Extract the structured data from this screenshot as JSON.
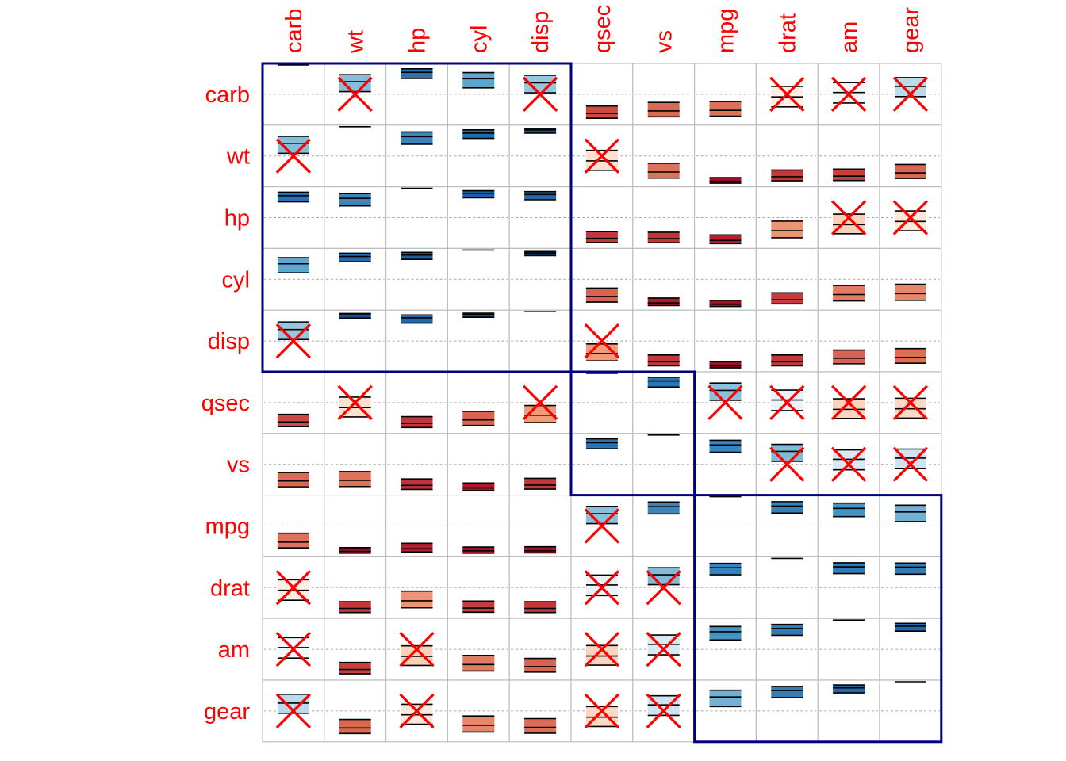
{
  "chart_data": {
    "type": "heatmap",
    "variant": "correlation-matrix-confidence-interval",
    "title": "",
    "variables": [
      "carb",
      "wt",
      "hp",
      "cyl",
      "disp",
      "qsec",
      "vs",
      "mpg",
      "drat",
      "am",
      "gear"
    ],
    "col_labels": [
      "carb",
      "wt",
      "hp",
      "cyl",
      "disp",
      "qsec",
      "vs",
      "mpg",
      "drat",
      "am",
      "gear"
    ],
    "row_labels": [
      "carb",
      "wt",
      "hp",
      "cyl",
      "disp",
      "qsec",
      "vs",
      "mpg",
      "drat",
      "am",
      "gear"
    ],
    "order": "hierarchical clustering",
    "clusters": [
      [
        "carb",
        "wt",
        "hp",
        "cyl",
        "disp"
      ],
      [
        "qsec",
        "vs"
      ],
      [
        "mpg",
        "drat",
        "am",
        "gear"
      ]
    ],
    "correlation_range": [
      -1,
      1
    ],
    "insignificant_marker": "cross",
    "gridlines": true,
    "legend": "none",
    "colors": {
      "label_text": "#ff0000",
      "cluster_rectangle": "#000080",
      "cross": "#ff0000",
      "grid": "#bebebe",
      "zero_line": "#a6a6a6",
      "palette_negative_to_positive": [
        "#67001f",
        "#b2182b",
        "#d6604d",
        "#f4a582",
        "#fddbc7",
        "#ffffff",
        "#d1e5f0",
        "#92c5de",
        "#4393c3",
        "#2166ac",
        "#053061"
      ]
    },
    "cells": [
      {
        "row": "carb",
        "col": "wt",
        "r": 0.43,
        "lower": 0.09,
        "upper": 0.67,
        "significant": false
      },
      {
        "row": "carb",
        "col": "hp",
        "r": 0.75,
        "lower": 0.54,
        "upper": 0.87,
        "significant": true
      },
      {
        "row": "carb",
        "col": "cyl",
        "r": 0.53,
        "lower": 0.22,
        "upper": 0.74,
        "significant": true
      },
      {
        "row": "carb",
        "col": "disp",
        "r": 0.39,
        "lower": 0.05,
        "upper": 0.65,
        "significant": false
      },
      {
        "row": "carb",
        "col": "qsec",
        "r": -0.66,
        "lower": -0.82,
        "upper": -0.4,
        "significant": true
      },
      {
        "row": "carb",
        "col": "vs",
        "r": -0.57,
        "lower": -0.77,
        "upper": -0.28,
        "significant": true
      },
      {
        "row": "carb",
        "col": "mpg",
        "r": -0.55,
        "lower": -0.75,
        "upper": -0.25,
        "significant": true
      },
      {
        "row": "carb",
        "col": "drat",
        "r": -0.09,
        "lower": -0.43,
        "upper": 0.27,
        "significant": false
      },
      {
        "row": "carb",
        "col": "am",
        "r": 0.06,
        "lower": -0.3,
        "upper": 0.4,
        "significant": false
      },
      {
        "row": "carb",
        "col": "gear",
        "r": 0.27,
        "lower": -0.08,
        "upper": 0.57,
        "significant": false
      },
      {
        "row": "wt",
        "col": "carb",
        "r": 0.43,
        "lower": 0.09,
        "upper": 0.67,
        "significant": false
      },
      {
        "row": "wt",
        "col": "hp",
        "r": 0.66,
        "lower": 0.4,
        "upper": 0.82,
        "significant": true
      },
      {
        "row": "wt",
        "col": "cyl",
        "r": 0.78,
        "lower": 0.6,
        "upper": 0.89,
        "significant": true
      },
      {
        "row": "wt",
        "col": "disp",
        "r": 0.89,
        "lower": 0.78,
        "upper": 0.94,
        "significant": true
      },
      {
        "row": "wt",
        "col": "qsec",
        "r": -0.17,
        "lower": -0.49,
        "upper": 0.19,
        "significant": false
      },
      {
        "row": "wt",
        "col": "vs",
        "r": -0.55,
        "lower": -0.76,
        "upper": -0.25,
        "significant": true
      },
      {
        "row": "wt",
        "col": "mpg",
        "r": -0.87,
        "lower": -0.93,
        "upper": -0.74,
        "significant": true
      },
      {
        "row": "wt",
        "col": "drat",
        "r": -0.71,
        "lower": -0.85,
        "upper": -0.48,
        "significant": true
      },
      {
        "row": "wt",
        "col": "am",
        "r": -0.69,
        "lower": -0.84,
        "upper": -0.45,
        "significant": true
      },
      {
        "row": "wt",
        "col": "gear",
        "r": -0.58,
        "lower": -0.77,
        "upper": -0.29,
        "significant": true
      },
      {
        "row": "hp",
        "col": "carb",
        "r": 0.75,
        "lower": 0.54,
        "upper": 0.87,
        "significant": true
      },
      {
        "row": "hp",
        "col": "wt",
        "r": 0.66,
        "lower": 0.4,
        "upper": 0.82,
        "significant": true
      },
      {
        "row": "hp",
        "col": "cyl",
        "r": 0.83,
        "lower": 0.68,
        "upper": 0.92,
        "significant": true
      },
      {
        "row": "hp",
        "col": "disp",
        "r": 0.79,
        "lower": 0.61,
        "upper": 0.89,
        "significant": true
      },
      {
        "row": "hp",
        "col": "qsec",
        "r": -0.71,
        "lower": -0.85,
        "upper": -0.48,
        "significant": true
      },
      {
        "row": "hp",
        "col": "vs",
        "r": -0.72,
        "lower": -0.86,
        "upper": -0.5,
        "significant": true
      },
      {
        "row": "hp",
        "col": "mpg",
        "r": -0.78,
        "lower": -0.89,
        "upper": -0.59,
        "significant": true
      },
      {
        "row": "hp",
        "col": "drat",
        "r": -0.45,
        "lower": -0.69,
        "upper": -0.12,
        "significant": true
      },
      {
        "row": "hp",
        "col": "am",
        "r": -0.24,
        "lower": -0.55,
        "upper": 0.12,
        "significant": false
      },
      {
        "row": "hp",
        "col": "gear",
        "r": -0.13,
        "lower": -0.45,
        "upper": 0.23,
        "significant": false
      },
      {
        "row": "cyl",
        "col": "carb",
        "r": 0.53,
        "lower": 0.22,
        "upper": 0.74,
        "significant": true
      },
      {
        "row": "cyl",
        "col": "wt",
        "r": 0.78,
        "lower": 0.6,
        "upper": 0.89,
        "significant": true
      },
      {
        "row": "cyl",
        "col": "hp",
        "r": 0.83,
        "lower": 0.68,
        "upper": 0.92,
        "significant": true
      },
      {
        "row": "cyl",
        "col": "disp",
        "r": 0.9,
        "lower": 0.81,
        "upper": 0.95,
        "significant": true
      },
      {
        "row": "cyl",
        "col": "qsec",
        "r": -0.59,
        "lower": -0.78,
        "upper": -0.3,
        "significant": true
      },
      {
        "row": "cyl",
        "col": "vs",
        "r": -0.81,
        "lower": -0.9,
        "upper": -0.64,
        "significant": true
      },
      {
        "row": "cyl",
        "col": "mpg",
        "r": -0.85,
        "lower": -0.93,
        "upper": -0.72,
        "significant": true
      },
      {
        "row": "cyl",
        "col": "drat",
        "r": -0.7,
        "lower": -0.84,
        "upper": -0.46,
        "significant": true
      },
      {
        "row": "cyl",
        "col": "am",
        "r": -0.52,
        "lower": -0.74,
        "upper": -0.21,
        "significant": true
      },
      {
        "row": "cyl",
        "col": "gear",
        "r": -0.49,
        "lower": -0.72,
        "upper": -0.17,
        "significant": true
      },
      {
        "row": "disp",
        "col": "carb",
        "r": 0.39,
        "lower": 0.05,
        "upper": 0.65,
        "significant": false
      },
      {
        "row": "disp",
        "col": "wt",
        "r": 0.89,
        "lower": 0.78,
        "upper": 0.94,
        "significant": true
      },
      {
        "row": "disp",
        "col": "hp",
        "r": 0.79,
        "lower": 0.61,
        "upper": 0.89,
        "significant": true
      },
      {
        "row": "disp",
        "col": "cyl",
        "r": 0.9,
        "lower": 0.81,
        "upper": 0.95,
        "significant": true
      },
      {
        "row": "disp",
        "col": "qsec",
        "r": -0.43,
        "lower": -0.68,
        "upper": -0.1,
        "significant": false
      },
      {
        "row": "disp",
        "col": "vs",
        "r": -0.71,
        "lower": -0.85,
        "upper": -0.48,
        "significant": true
      },
      {
        "row": "disp",
        "col": "mpg",
        "r": -0.85,
        "lower": -0.92,
        "upper": -0.71,
        "significant": true
      },
      {
        "row": "disp",
        "col": "drat",
        "r": -0.71,
        "lower": -0.85,
        "upper": -0.48,
        "significant": true
      },
      {
        "row": "disp",
        "col": "am",
        "r": -0.59,
        "lower": -0.78,
        "upper": -0.31,
        "significant": true
      },
      {
        "row": "disp",
        "col": "gear",
        "r": -0.56,
        "lower": -0.76,
        "upper": -0.26,
        "significant": true
      },
      {
        "row": "qsec",
        "col": "carb",
        "r": -0.66,
        "lower": -0.82,
        "upper": -0.4,
        "significant": true
      },
      {
        "row": "qsec",
        "col": "wt",
        "r": -0.17,
        "lower": -0.49,
        "upper": 0.19,
        "significant": false
      },
      {
        "row": "qsec",
        "col": "hp",
        "r": -0.71,
        "lower": -0.85,
        "upper": -0.48,
        "significant": true
      },
      {
        "row": "qsec",
        "col": "cyl",
        "r": -0.59,
        "lower": -0.78,
        "upper": -0.3,
        "significant": true
      },
      {
        "row": "qsec",
        "col": "disp",
        "r": -0.43,
        "lower": -0.68,
        "upper": -0.1,
        "significant": false
      },
      {
        "row": "qsec",
        "col": "vs",
        "r": 0.74,
        "lower": 0.53,
        "upper": 0.87,
        "significant": true
      },
      {
        "row": "qsec",
        "col": "mpg",
        "r": 0.42,
        "lower": 0.08,
        "upper": 0.67,
        "significant": false
      },
      {
        "row": "qsec",
        "col": "drat",
        "r": 0.09,
        "lower": -0.27,
        "upper": 0.43,
        "significant": false
      },
      {
        "row": "qsec",
        "col": "am",
        "r": -0.23,
        "lower": -0.54,
        "upper": 0.13,
        "significant": false
      },
      {
        "row": "qsec",
        "col": "gear",
        "r": -0.21,
        "lower": -0.53,
        "upper": 0.15,
        "significant": false
      },
      {
        "row": "vs",
        "col": "carb",
        "r": -0.57,
        "lower": -0.77,
        "upper": -0.28,
        "significant": true
      },
      {
        "row": "vs",
        "col": "wt",
        "r": -0.55,
        "lower": -0.76,
        "upper": -0.25,
        "significant": true
      },
      {
        "row": "vs",
        "col": "hp",
        "r": -0.72,
        "lower": -0.86,
        "upper": -0.5,
        "significant": true
      },
      {
        "row": "vs",
        "col": "cyl",
        "r": -0.81,
        "lower": -0.9,
        "upper": -0.64,
        "significant": true
      },
      {
        "row": "vs",
        "col": "disp",
        "r": -0.71,
        "lower": -0.85,
        "upper": -0.48,
        "significant": true
      },
      {
        "row": "vs",
        "col": "qsec",
        "r": 0.74,
        "lower": 0.53,
        "upper": 0.87,
        "significant": true
      },
      {
        "row": "vs",
        "col": "mpg",
        "r": 0.66,
        "lower": 0.41,
        "upper": 0.82,
        "significant": true
      },
      {
        "row": "vs",
        "col": "drat",
        "r": 0.44,
        "lower": 0.1,
        "upper": 0.68,
        "significant": false
      },
      {
        "row": "vs",
        "col": "am",
        "r": 0.17,
        "lower": -0.19,
        "upper": 0.49,
        "significant": false
      },
      {
        "row": "vs",
        "col": "gear",
        "r": 0.21,
        "lower": -0.15,
        "upper": 0.52,
        "significant": false
      },
      {
        "row": "mpg",
        "col": "carb",
        "r": -0.55,
        "lower": -0.75,
        "upper": -0.25,
        "significant": true
      },
      {
        "row": "mpg",
        "col": "wt",
        "r": -0.87,
        "lower": -0.93,
        "upper": -0.74,
        "significant": true
      },
      {
        "row": "mpg",
        "col": "hp",
        "r": -0.78,
        "lower": -0.89,
        "upper": -0.59,
        "significant": true
      },
      {
        "row": "mpg",
        "col": "cyl",
        "r": -0.85,
        "lower": -0.93,
        "upper": -0.72,
        "significant": true
      },
      {
        "row": "mpg",
        "col": "disp",
        "r": -0.85,
        "lower": -0.92,
        "upper": -0.71,
        "significant": true
      },
      {
        "row": "mpg",
        "col": "qsec",
        "r": 0.42,
        "lower": 0.08,
        "upper": 0.67,
        "significant": false
      },
      {
        "row": "mpg",
        "col": "vs",
        "r": 0.66,
        "lower": 0.41,
        "upper": 0.82,
        "significant": true
      },
      {
        "row": "mpg",
        "col": "drat",
        "r": 0.68,
        "lower": 0.44,
        "upper": 0.83,
        "significant": true
      },
      {
        "row": "mpg",
        "col": "am",
        "r": 0.6,
        "lower": 0.32,
        "upper": 0.78,
        "significant": true
      },
      {
        "row": "mpg",
        "col": "gear",
        "r": 0.48,
        "lower": 0.15,
        "upper": 0.71,
        "significant": true
      },
      {
        "row": "drat",
        "col": "carb",
        "r": -0.09,
        "lower": -0.43,
        "upper": 0.27,
        "significant": false
      },
      {
        "row": "drat",
        "col": "wt",
        "r": -0.71,
        "lower": -0.85,
        "upper": -0.48,
        "significant": true
      },
      {
        "row": "drat",
        "col": "hp",
        "r": -0.45,
        "lower": -0.69,
        "upper": -0.12,
        "significant": true
      },
      {
        "row": "drat",
        "col": "cyl",
        "r": -0.7,
        "lower": -0.84,
        "upper": -0.46,
        "significant": true
      },
      {
        "row": "drat",
        "col": "disp",
        "r": -0.71,
        "lower": -0.85,
        "upper": -0.48,
        "significant": true
      },
      {
        "row": "drat",
        "col": "qsec",
        "r": 0.09,
        "lower": -0.27,
        "upper": 0.43,
        "significant": false
      },
      {
        "row": "drat",
        "col": "vs",
        "r": 0.44,
        "lower": 0.1,
        "upper": 0.68,
        "significant": false
      },
      {
        "row": "drat",
        "col": "mpg",
        "r": 0.68,
        "lower": 0.44,
        "upper": 0.83,
        "significant": true
      },
      {
        "row": "drat",
        "col": "am",
        "r": 0.71,
        "lower": 0.48,
        "upper": 0.85,
        "significant": true
      },
      {
        "row": "drat",
        "col": "gear",
        "r": 0.7,
        "lower": 0.46,
        "upper": 0.84,
        "significant": true
      },
      {
        "row": "am",
        "col": "carb",
        "r": 0.06,
        "lower": -0.3,
        "upper": 0.4,
        "significant": false
      },
      {
        "row": "am",
        "col": "wt",
        "r": -0.69,
        "lower": -0.84,
        "upper": -0.45,
        "significant": true
      },
      {
        "row": "am",
        "col": "hp",
        "r": -0.24,
        "lower": -0.55,
        "upper": 0.12,
        "significant": false
      },
      {
        "row": "am",
        "col": "cyl",
        "r": -0.52,
        "lower": -0.74,
        "upper": -0.21,
        "significant": true
      },
      {
        "row": "am",
        "col": "disp",
        "r": -0.59,
        "lower": -0.78,
        "upper": -0.31,
        "significant": true
      },
      {
        "row": "am",
        "col": "qsec",
        "r": -0.23,
        "lower": -0.54,
        "upper": 0.13,
        "significant": false
      },
      {
        "row": "am",
        "col": "vs",
        "r": 0.17,
        "lower": -0.19,
        "upper": 0.49,
        "significant": false
      },
      {
        "row": "am",
        "col": "mpg",
        "r": 0.6,
        "lower": 0.32,
        "upper": 0.78,
        "significant": true
      },
      {
        "row": "am",
        "col": "drat",
        "r": 0.71,
        "lower": 0.48,
        "upper": 0.85,
        "significant": true
      },
      {
        "row": "am",
        "col": "gear",
        "r": 0.79,
        "lower": 0.62,
        "upper": 0.89,
        "significant": true
      },
      {
        "row": "gear",
        "col": "carb",
        "r": 0.27,
        "lower": -0.08,
        "upper": 0.57,
        "significant": false
      },
      {
        "row": "gear",
        "col": "wt",
        "r": -0.58,
        "lower": -0.77,
        "upper": -0.29,
        "significant": true
      },
      {
        "row": "gear",
        "col": "hp",
        "r": -0.13,
        "lower": -0.45,
        "upper": 0.23,
        "significant": false
      },
      {
        "row": "gear",
        "col": "cyl",
        "r": -0.49,
        "lower": -0.72,
        "upper": -0.17,
        "significant": true
      },
      {
        "row": "gear",
        "col": "disp",
        "r": -0.56,
        "lower": -0.76,
        "upper": -0.26,
        "significant": true
      },
      {
        "row": "gear",
        "col": "qsec",
        "r": -0.21,
        "lower": -0.53,
        "upper": 0.15,
        "significant": false
      },
      {
        "row": "gear",
        "col": "vs",
        "r": 0.21,
        "lower": -0.15,
        "upper": 0.52,
        "significant": false
      },
      {
        "row": "gear",
        "col": "mpg",
        "r": 0.48,
        "lower": 0.15,
        "upper": 0.71,
        "significant": true
      },
      {
        "row": "gear",
        "col": "drat",
        "r": 0.7,
        "lower": 0.46,
        "upper": 0.84,
        "significant": true
      },
      {
        "row": "gear",
        "col": "am",
        "r": 0.79,
        "lower": 0.62,
        "upper": 0.89,
        "significant": true
      }
    ]
  }
}
